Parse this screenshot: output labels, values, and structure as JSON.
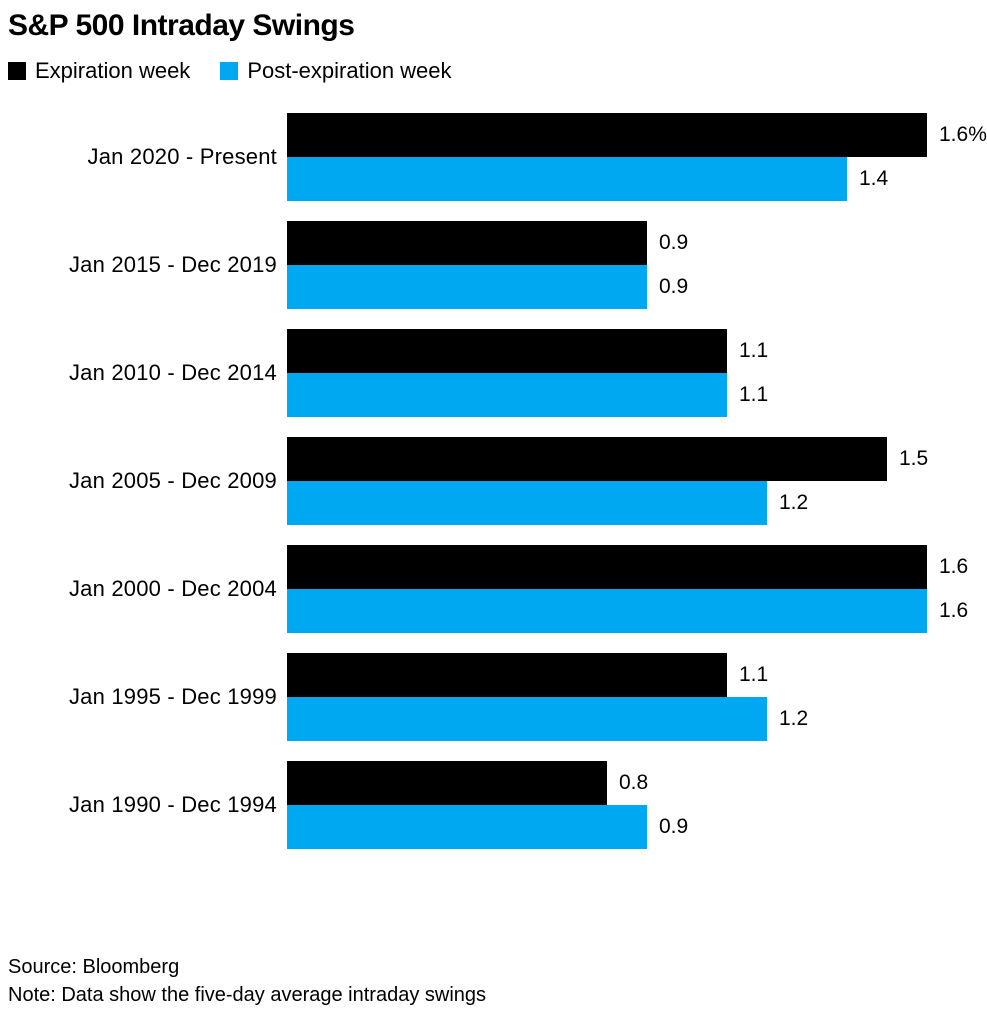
{
  "title": "S&P 500 Intraday Swings",
  "legend": [
    {
      "label": "Expiration week",
      "color": "#000000"
    },
    {
      "label": "Post-expiration week",
      "color": "#00a8f1"
    }
  ],
  "footer": {
    "source": "Source: Bloomberg",
    "note": "Note: Data show the five-day average intraday swings"
  },
  "chart_data": {
    "type": "bar",
    "orientation": "horizontal",
    "title": "S&P 500 Intraday Swings",
    "xlabel": "",
    "ylabel": "",
    "unit": "percent",
    "xlim": [
      0,
      1.6
    ],
    "grid": false,
    "legend_position": "top",
    "bar_value_labels": true,
    "categories": [
      "Jan 2020 - Present",
      "Jan 2015 - Dec 2019",
      "Jan 2010 - Dec 2014",
      "Jan 2005 - Dec 2009",
      "Jan 2000 - Dec 2004",
      "Jan 1995 - Dec 1999",
      "Jan 1990 - Dec 1994"
    ],
    "series": [
      {
        "name": "Expiration week",
        "color": "#000000",
        "values": [
          1.6,
          0.9,
          1.1,
          1.5,
          1.6,
          1.1,
          0.8
        ],
        "value_labels": [
          "1.6%",
          "0.9",
          "1.1",
          "1.5",
          "1.6",
          "1.1",
          "0.8"
        ]
      },
      {
        "name": "Post-expiration week",
        "color": "#00a8f1",
        "values": [
          1.4,
          0.9,
          1.1,
          1.2,
          1.6,
          1.2,
          0.9
        ],
        "value_labels": [
          "1.4",
          "0.9",
          "1.1",
          "1.2",
          "1.6",
          "1.2",
          "0.9"
        ]
      }
    ]
  }
}
